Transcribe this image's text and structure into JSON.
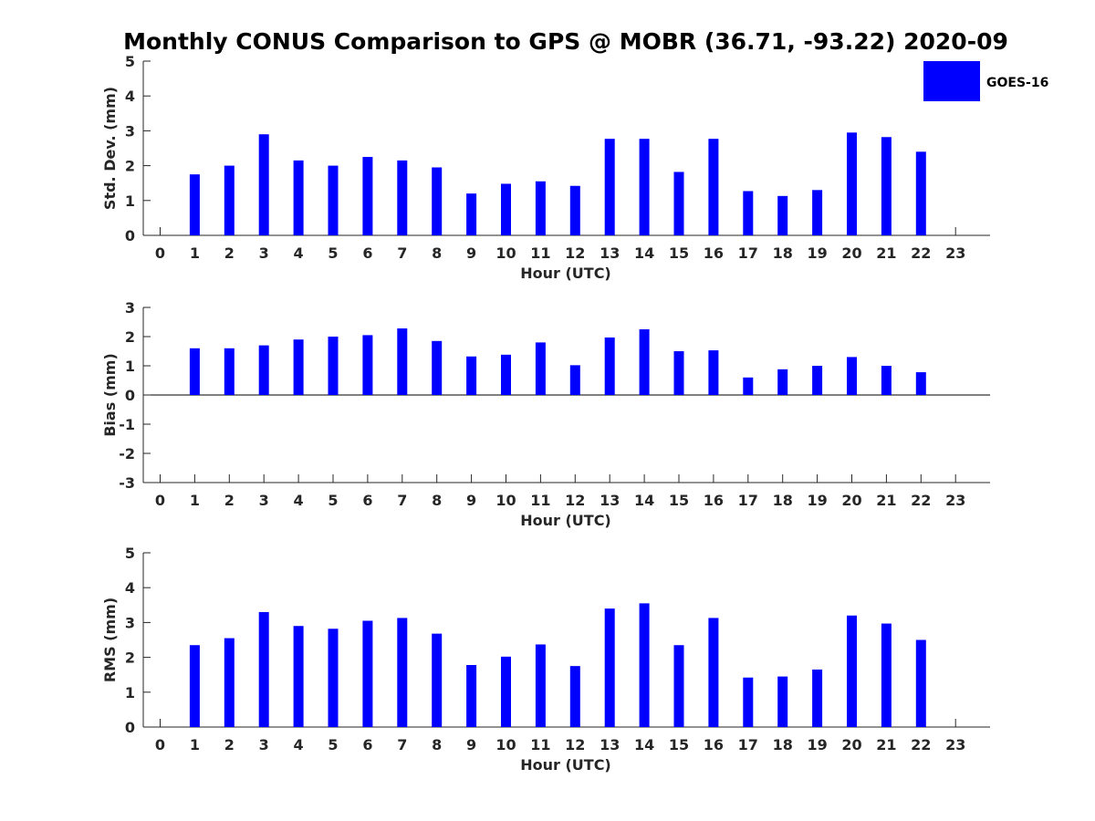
{
  "title": "Monthly CONUS Comparison to GPS @ MOBR (36.71, -93.22) 2020-09",
  "colors": {
    "bar": "#0000ff",
    "axis": "#262626"
  },
  "legend": {
    "label": "GOES-16",
    "position": "top-right"
  },
  "chart_data": [
    {
      "type": "bar",
      "title": "Monthly CONUS Comparison to GPS @ MOBR (36.71, -93.22) 2020-09",
      "xlabel": "Hour (UTC)",
      "ylabel": "Std. Dev. (mm)",
      "ylim": [
        0,
        5
      ],
      "yticks": [
        0,
        1,
        2,
        3,
        4,
        5
      ],
      "categories": [
        "0",
        "1",
        "2",
        "3",
        "4",
        "5",
        "6",
        "7",
        "8",
        "9",
        "10",
        "11",
        "12",
        "13",
        "14",
        "15",
        "16",
        "17",
        "18",
        "19",
        "20",
        "21",
        "22",
        "23"
      ],
      "series": [
        {
          "name": "GOES-16",
          "values": [
            null,
            1.75,
            2.0,
            2.9,
            2.15,
            2.0,
            2.25,
            2.15,
            1.95,
            1.2,
            1.48,
            1.55,
            1.42,
            2.77,
            2.77,
            1.82,
            2.77,
            1.27,
            1.13,
            1.3,
            2.95,
            2.82,
            2.4,
            null
          ]
        }
      ]
    },
    {
      "type": "bar",
      "title": "",
      "xlabel": "Hour (UTC)",
      "ylabel": "Bias (mm)",
      "ylim": [
        -3,
        3
      ],
      "yticks": [
        -3,
        -2,
        -1,
        0,
        1,
        2,
        3
      ],
      "categories": [
        "0",
        "1",
        "2",
        "3",
        "4",
        "5",
        "6",
        "7",
        "8",
        "9",
        "10",
        "11",
        "12",
        "13",
        "14",
        "15",
        "16",
        "17",
        "18",
        "19",
        "20",
        "21",
        "22",
        "23"
      ],
      "series": [
        {
          "name": "GOES-16",
          "values": [
            null,
            1.6,
            1.6,
            1.7,
            1.9,
            2.0,
            2.05,
            2.28,
            1.85,
            1.32,
            1.38,
            1.8,
            1.02,
            1.97,
            2.25,
            1.5,
            1.53,
            0.6,
            0.88,
            1.0,
            1.3,
            1.0,
            0.78,
            null
          ]
        }
      ]
    },
    {
      "type": "bar",
      "title": "",
      "xlabel": "Hour (UTC)",
      "ylabel": "RMS (mm)",
      "ylim": [
        0,
        5
      ],
      "yticks": [
        0,
        1,
        2,
        3,
        4,
        5
      ],
      "categories": [
        "0",
        "1",
        "2",
        "3",
        "4",
        "5",
        "6",
        "7",
        "8",
        "9",
        "10",
        "11",
        "12",
        "13",
        "14",
        "15",
        "16",
        "17",
        "18",
        "19",
        "20",
        "21",
        "22",
        "23"
      ],
      "series": [
        {
          "name": "GOES-16",
          "values": [
            null,
            2.35,
            2.55,
            3.3,
            2.9,
            2.82,
            3.05,
            3.13,
            2.68,
            1.78,
            2.02,
            2.37,
            1.75,
            3.4,
            3.55,
            2.35,
            3.13,
            1.42,
            1.45,
            1.65,
            3.2,
            2.97,
            2.5,
            null
          ]
        }
      ]
    }
  ]
}
